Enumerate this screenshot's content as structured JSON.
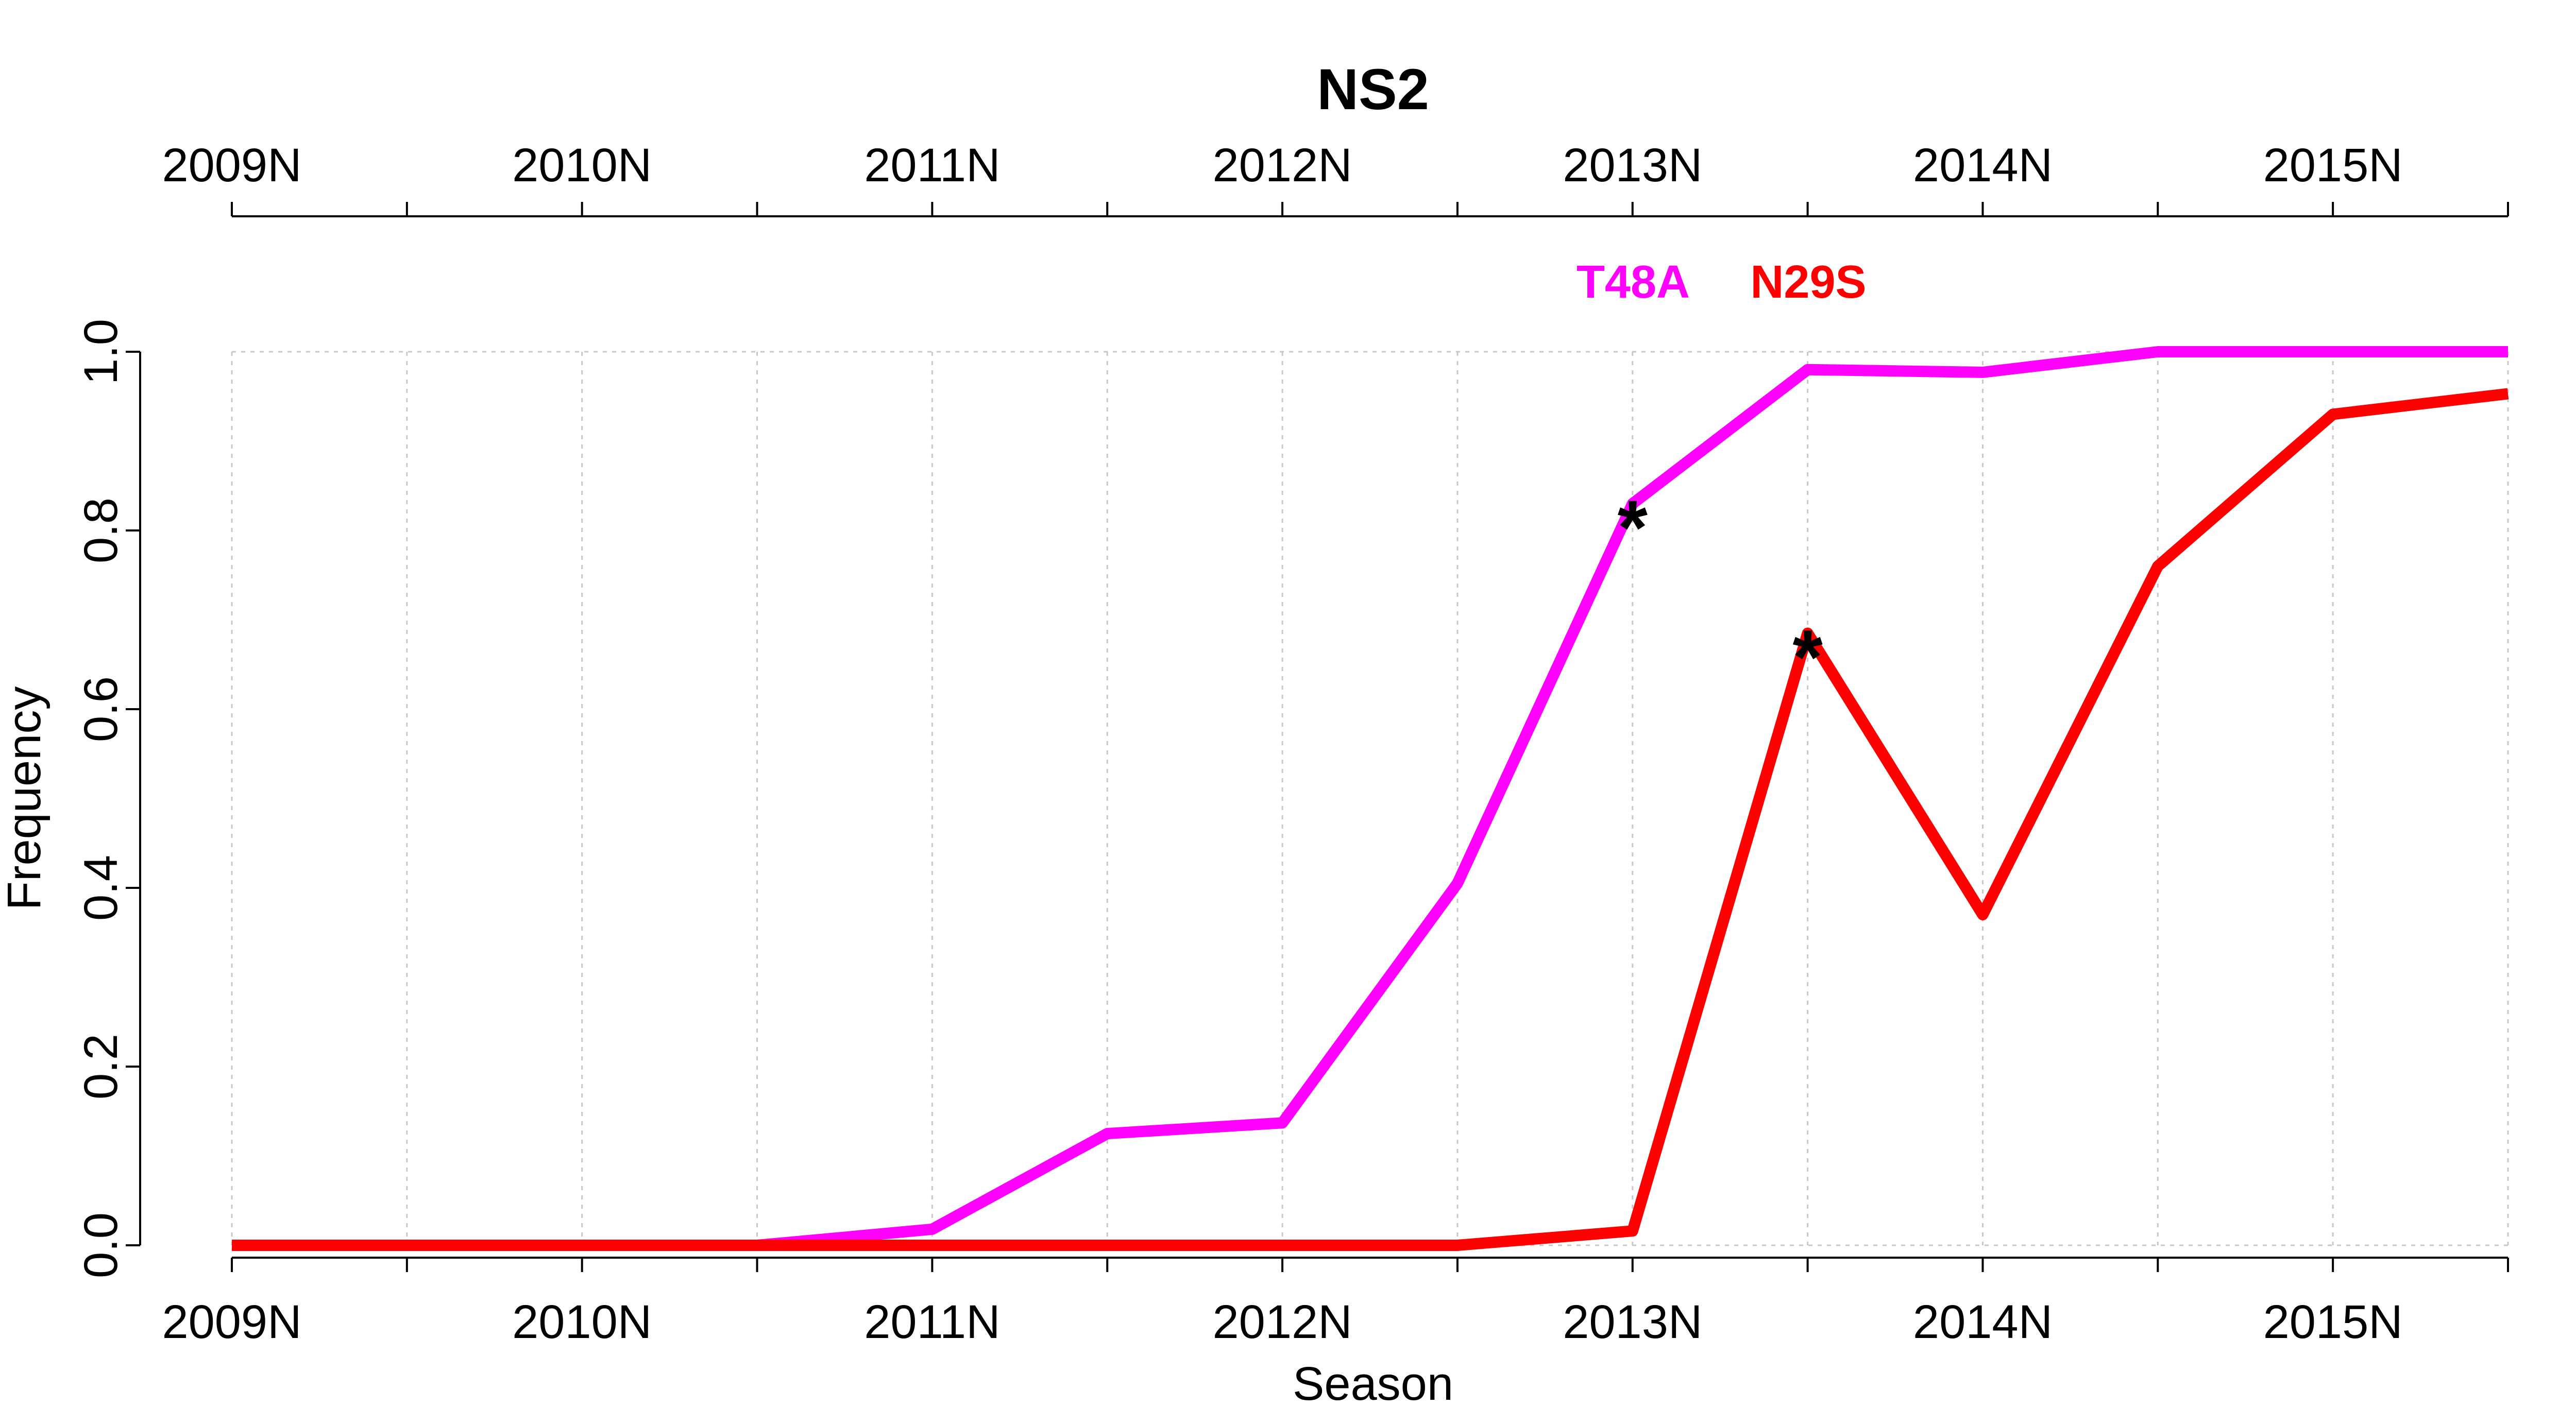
{
  "chart_data": {
    "type": "line",
    "title": "NS2",
    "xlabel": "Season",
    "ylabel": "Frequency",
    "x": [
      2009,
      2009.5,
      2010,
      2010.5,
      2011,
      2011.5,
      2012,
      2012.5,
      2013,
      2013.5,
      2014,
      2014.5,
      2015,
      2015.5
    ],
    "xlim": [
      2009,
      2015.5
    ],
    "ylim": [
      0,
      1
    ],
    "x_ticks": [
      2009,
      2010,
      2011,
      2012,
      2013,
      2014,
      2015
    ],
    "x_minor_ticks": [
      2009.5,
      2010.5,
      2011.5,
      2012.5,
      2013.5,
      2014.5,
      2015.5
    ],
    "x_tick_labels": [
      "2009N",
      "2010N",
      "2011N",
      "2012N",
      "2013N",
      "2014N",
      "2015N"
    ],
    "y_ticks": [
      0,
      0.2,
      0.4,
      0.6,
      0.8,
      1
    ],
    "y_tick_labels": [
      "0.0",
      "0.2",
      "0.4",
      "0.6",
      "0.8",
      "1.0"
    ],
    "grid": true,
    "legend_placement": "top-center",
    "series": [
      {
        "name": "T48A",
        "color": "#ff00ff",
        "values": [
          0,
          0,
          0,
          0,
          0.018,
          0.125,
          0.137,
          0.405,
          0.83,
          0.98,
          0.977,
          1.0,
          1.0,
          1.0
        ]
      },
      {
        "name": "N29S",
        "color": "#ff0000",
        "values": [
          0,
          0,
          0,
          0,
          0,
          0,
          0,
          0,
          0.016,
          0.685,
          0.37,
          0.76,
          0.93,
          0.953
        ]
      }
    ],
    "annotations": [
      {
        "text": "*",
        "x": 2013,
        "y": 0.83
      },
      {
        "text": "*",
        "x": 2013.5,
        "y": 0.685
      }
    ]
  }
}
